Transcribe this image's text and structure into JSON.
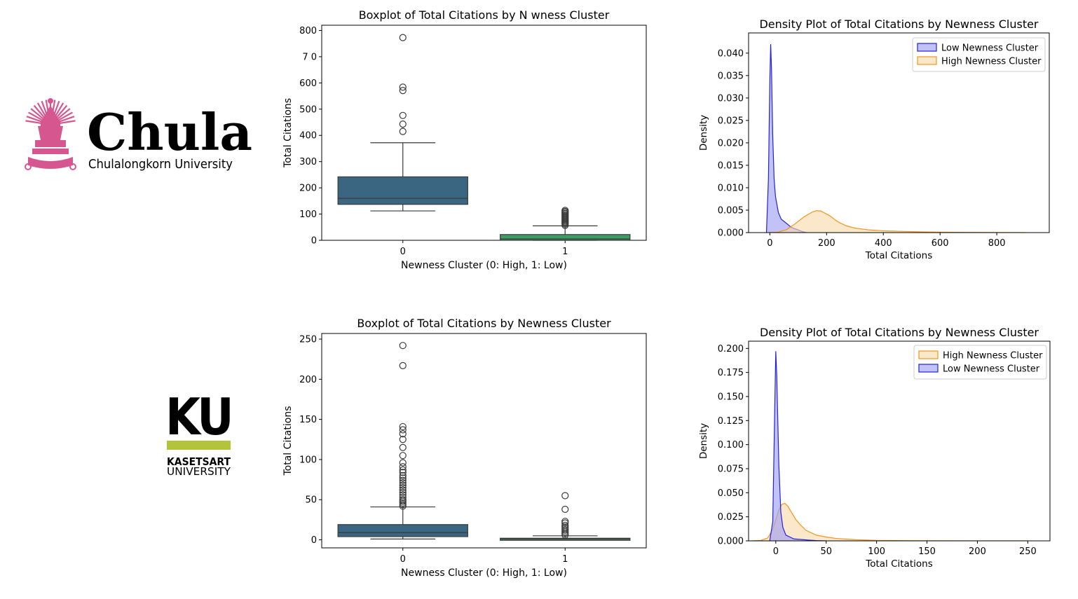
{
  "logos": {
    "chula": {
      "wordmark": "Chula",
      "subtitle": "Chulalongkorn University",
      "color": "#d6578f"
    },
    "ku": {
      "wordmark": "KU",
      "line1": "KASETSART",
      "line2": "UNIVERSITY",
      "color": "#0f6b5e",
      "bar_color": "#b3c43a"
    }
  },
  "chart_data": [
    {
      "type": "box",
      "title": "Boxplot of Total Citations by N  wness Cluster",
      "xlabel": "Newness Cluster (0: High, 1: Low)",
      "ylabel": "Total Citations",
      "categories": [
        "0",
        "1"
      ],
      "ylim": [
        0,
        820
      ],
      "yticks": [
        0,
        100,
        200,
        300,
        400,
        500,
        600,
        800
      ],
      "partial_tick": "7 0",
      "boxes": [
        {
          "category": "0",
          "color": "#3b6682",
          "whisker_low": 112,
          "q1": 137,
          "median": 160,
          "q3": 242,
          "whisker_high": 372,
          "outliers": [
            415,
            443,
            476,
            571,
            584,
            773
          ]
        },
        {
          "category": "1",
          "color": "#3d9b63",
          "whisker_low": 0,
          "q1": 0,
          "median": 5,
          "q3": 22,
          "whisker_high": 55,
          "outliers": [
            57,
            62,
            66,
            70,
            74,
            78,
            82,
            86,
            90,
            94,
            98,
            102,
            106,
            110,
            114
          ]
        }
      ]
    },
    {
      "type": "area",
      "title": "Density Plot of Total Citations by Newness Cluster",
      "xlabel": "Total Citations",
      "ylabel": "Density",
      "xlim": [
        -75,
        985
      ],
      "ylim": [
        0,
        0.0445
      ],
      "xticks": [
        0,
        200,
        400,
        600,
        800
      ],
      "yticks": [
        0.0,
        0.005,
        0.01,
        0.015,
        0.02,
        0.025,
        0.03,
        0.035,
        0.04
      ],
      "legend": "top-right",
      "series": [
        {
          "name": "Low Newness Cluster",
          "color": "#2222dd",
          "fill": "#9c9cf2",
          "x": [
            -12,
            -5,
            0,
            3,
            6,
            10,
            15,
            20,
            30,
            40,
            50,
            60,
            75,
            90,
            100,
            115,
            130
          ],
          "y": [
            0.0,
            0.012,
            0.034,
            0.042,
            0.036,
            0.022,
            0.012,
            0.008,
            0.0045,
            0.003,
            0.0025,
            0.002,
            0.0012,
            0.0008,
            0.0006,
            0.0002,
            0.0
          ]
        },
        {
          "name": "High Newness Cluster",
          "color": "#f0961e",
          "fill": "#f9d8aa",
          "x": [
            0,
            30,
            60,
            90,
            120,
            150,
            165,
            180,
            210,
            240,
            270,
            300,
            350,
            400,
            450,
            500,
            550,
            600,
            700,
            800,
            900
          ],
          "y": [
            0.0,
            0.0001,
            0.0007,
            0.002,
            0.0035,
            0.0046,
            0.0049,
            0.0048,
            0.0038,
            0.0024,
            0.0015,
            0.001,
            0.0006,
            0.0004,
            0.0003,
            0.00022,
            0.00015,
            0.0001,
            5e-05,
            2e-05,
            0.0
          ]
        }
      ]
    },
    {
      "type": "box",
      "title": "Boxplot of Total Citations by Newness Cluster",
      "xlabel": "Newness Cluster (0: High, 1: Low)",
      "ylabel": "Total Citations",
      "categories": [
        "0",
        "1"
      ],
      "ylim": [
        -10,
        257
      ],
      "yticks": [
        0,
        50,
        100,
        150,
        200,
        250
      ],
      "boxes": [
        {
          "category": "0",
          "color": "#3b6682",
          "whisker_low": 1,
          "q1": 4,
          "median": 9,
          "q3": 19,
          "whisker_high": 41,
          "outliers": [
            42,
            44,
            46,
            48,
            50,
            53,
            56,
            59,
            62,
            65,
            68,
            71,
            74,
            77,
            80,
            84,
            87,
            91,
            96,
            105,
            115,
            125,
            132,
            137,
            141,
            217,
            242
          ]
        },
        {
          "category": "1",
          "color": "#3d9b63",
          "whisker_low": 0,
          "q1": 0,
          "median": 1,
          "q3": 2,
          "whisker_high": 5,
          "outliers": [
            6,
            8,
            10,
            12,
            14,
            16,
            18,
            21,
            23,
            38,
            55
          ]
        }
      ]
    },
    {
      "type": "area",
      "title": "Density Plot of Total Citations by Newness Cluster",
      "xlabel": "Total Citations",
      "ylabel": "Density",
      "xlim": [
        -27,
        272
      ],
      "ylim": [
        0,
        0.2075
      ],
      "xticks": [
        0,
        50,
        100,
        150,
        200,
        250
      ],
      "yticks": [
        0.0,
        0.025,
        0.05,
        0.075,
        0.1,
        0.125,
        0.15,
        0.175,
        0.2
      ],
      "legend": "top-right",
      "series": [
        {
          "name": "High Newness Cluster",
          "color": "#f0961e",
          "fill": "#f9d8aa",
          "x": [
            -25,
            -15,
            -8,
            -3,
            0,
            3,
            6,
            9,
            12,
            16,
            20,
            25,
            30,
            40,
            50,
            60,
            80,
            100,
            130,
            160,
            200,
            250
          ],
          "y": [
            0.0,
            0.0004,
            0.003,
            0.012,
            0.022,
            0.032,
            0.038,
            0.039,
            0.036,
            0.029,
            0.022,
            0.016,
            0.011,
            0.006,
            0.004,
            0.0025,
            0.0012,
            0.0005,
            0.0002,
            0.0001,
            4e-05,
            0.0
          ]
        },
        {
          "name": "Low Newness Cluster",
          "color": "#2222dd",
          "fill": "#9c9cf2",
          "x": [
            -6,
            -3,
            -1,
            0,
            1,
            3,
            5,
            7,
            10,
            14,
            18,
            25,
            32,
            40,
            50
          ],
          "y": [
            0.0,
            0.02,
            0.14,
            0.197,
            0.17,
            0.08,
            0.03,
            0.014,
            0.006,
            0.004,
            0.002,
            0.0015,
            0.0008,
            0.0003,
            0.0
          ]
        }
      ]
    }
  ]
}
